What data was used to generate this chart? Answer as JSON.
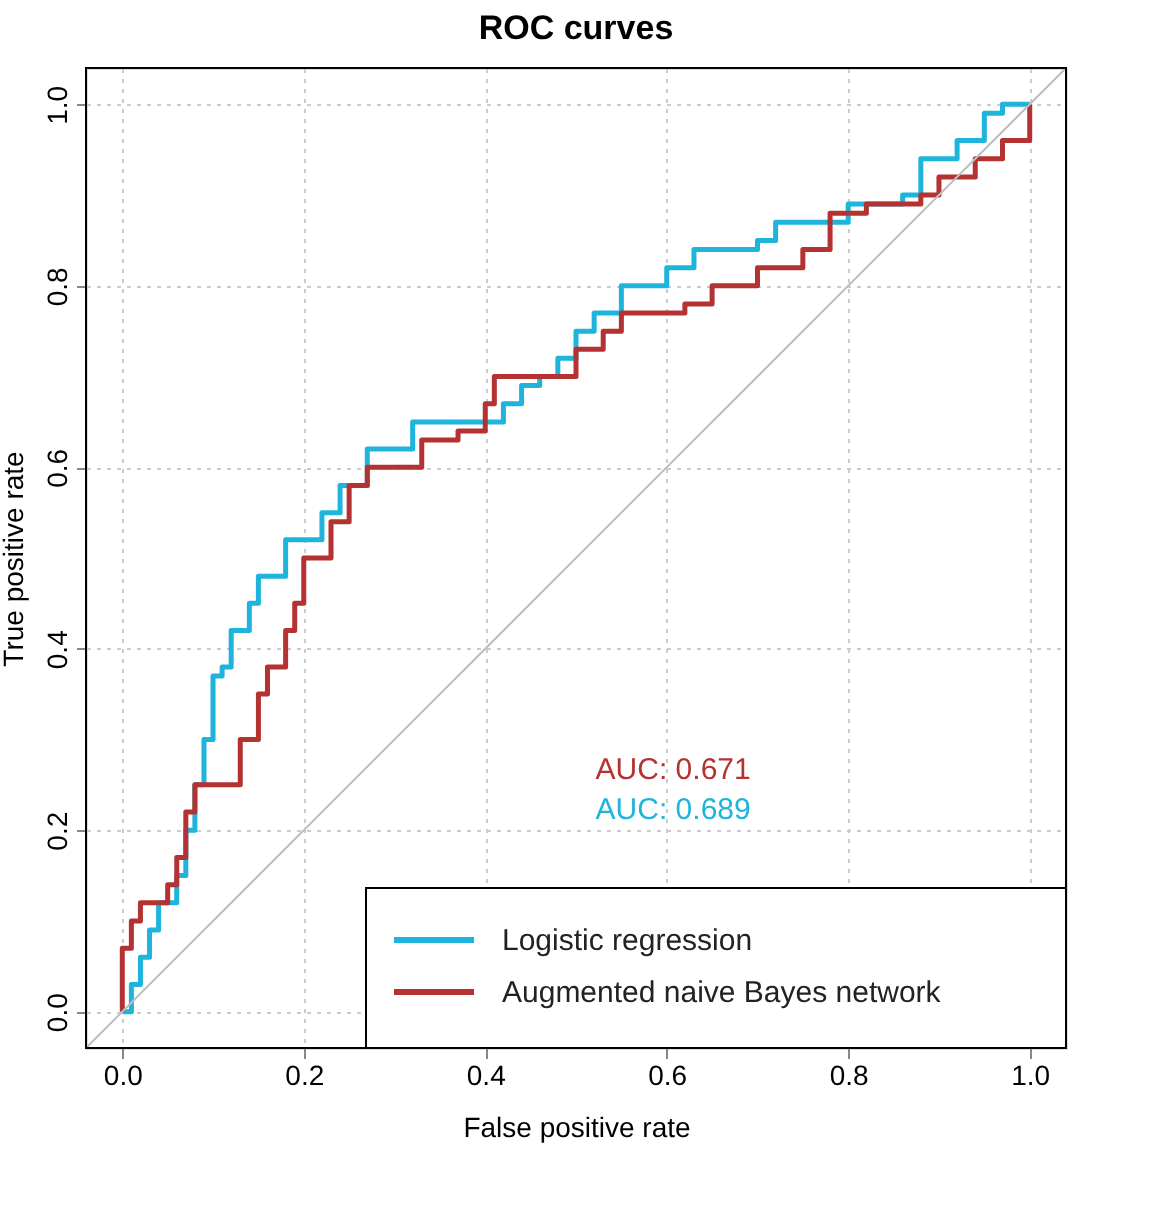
{
  "chart_data": {
    "type": "step",
    "title": "ROC curves",
    "xlabel": "False positive rate",
    "ylabel": "True positive rate",
    "xlim": [
      -0.04,
      1.04
    ],
    "ylim": [
      -0.04,
      1.04
    ],
    "xticks": [
      {
        "value": 0,
        "label": "0.0"
      },
      0.2,
      0.4,
      0.6,
      0.8,
      {
        "value": 1,
        "label": "1.0"
      }
    ],
    "yticks": [
      {
        "value": 0,
        "label": "0.0"
      },
      0.2,
      0.4,
      0.6,
      0.8,
      {
        "value": 1,
        "label": "1.0"
      }
    ],
    "grid": true,
    "legend": "bottom right",
    "line_style": "solid",
    "marker": "none",
    "annotations": [
      "AUC: 0.671",
      "AUC: 0.689"
    ],
    "series": [
      {
        "name": "Logistic regression",
        "color": "#1eb4dc",
        "x": [
          0,
          0.01,
          0.02,
          0.03,
          0.04,
          0.05,
          0.06,
          0.07,
          0.08,
          0.09,
          0.1,
          0.11,
          0.12,
          0.14,
          0.15,
          0.17,
          0.18,
          0.21,
          0.22,
          0.24,
          0.27,
          0.3,
          0.32,
          0.38,
          0.42,
          0.44,
          0.46,
          0.48,
          0.5,
          0.52,
          0.55,
          0.6,
          0.63,
          0.7,
          0.72,
          0.77,
          0.8,
          0.86,
          0.88,
          0.92,
          0.95,
          0.97,
          1
        ],
        "values": [
          0,
          0.03,
          0.06,
          0.09,
          0.12,
          0.12,
          0.15,
          0.2,
          0.25,
          0.3,
          0.37,
          0.38,
          0.42,
          0.45,
          0.48,
          0.48,
          0.52,
          0.52,
          0.55,
          0.58,
          0.62,
          0.62,
          0.65,
          0.65,
          0.67,
          0.69,
          0.7,
          0.72,
          0.75,
          0.77,
          0.8,
          0.82,
          0.84,
          0.85,
          0.87,
          0.87,
          0.89,
          0.9,
          0.94,
          0.96,
          0.99,
          1,
          1
        ]
      },
      {
        "name": "Augmented naive Bayes network",
        "color": "#b43232",
        "x": [
          0,
          0,
          0.01,
          0.02,
          0.04,
          0.05,
          0.06,
          0.07,
          0.08,
          0.12,
          0.13,
          0.15,
          0.16,
          0.18,
          0.19,
          0.2,
          0.22,
          0.23,
          0.25,
          0.27,
          0.3,
          0.33,
          0.37,
          0.4,
          0.41,
          0.48,
          0.5,
          0.53,
          0.55,
          0.62,
          0.65,
          0.7,
          0.75,
          0.78,
          0.82,
          0.88,
          0.9,
          0.94,
          0.97,
          1
        ],
        "values": [
          0,
          0.07,
          0.1,
          0.12,
          0.12,
          0.14,
          0.17,
          0.22,
          0.25,
          0.25,
          0.3,
          0.35,
          0.38,
          0.42,
          0.45,
          0.5,
          0.5,
          0.54,
          0.58,
          0.6,
          0.6,
          0.63,
          0.64,
          0.67,
          0.7,
          0.7,
          0.73,
          0.75,
          0.77,
          0.78,
          0.8,
          0.82,
          0.84,
          0.88,
          0.89,
          0.9,
          0.92,
          0.94,
          0.96,
          1
        ]
      },
      {
        "color": "#bebebe",
        "type": "line",
        "x": [
          -0.04,
          1.04
        ],
        "values": [
          -0.04,
          1.04
        ]
      }
    ]
  }
}
